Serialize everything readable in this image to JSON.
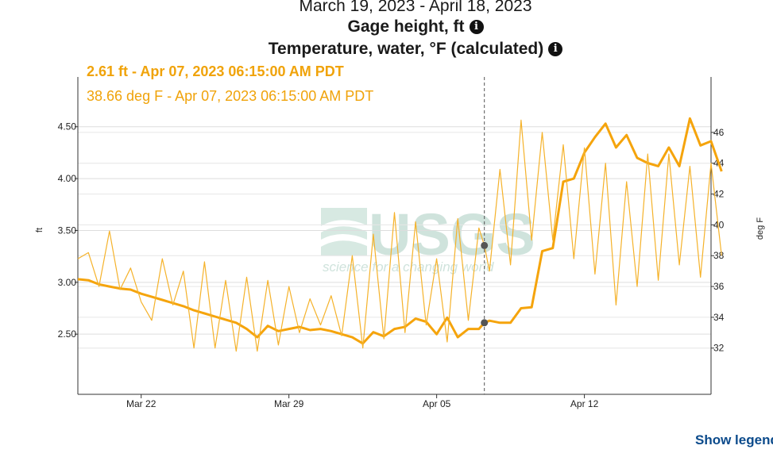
{
  "header": {
    "date_range": "March 19, 2023 - April 18, 2023",
    "gage_title": "Gage height, ft",
    "temp_title": "Temperature, water, °F (calculated)",
    "info_icon_glyph": "i"
  },
  "tooltip": {
    "gage": "2.61 ft - Apr 07, 2023 06:15:00 AM PDT",
    "temp": "38.66 deg F - Apr 07, 2023 06:15:00 AM PDT"
  },
  "legend_toggle": {
    "label": "Show legend"
  },
  "watermark": {
    "logo": "USGS",
    "tagline": "science for a changing world"
  },
  "colors": {
    "series": "#f5a40c",
    "temp_line": "#f5b22a",
    "grid": "#dddddd",
    "cursor": "#555555",
    "marker": "#555555",
    "link": "#0b4a8b"
  },
  "chart_data": {
    "type": "line",
    "x_range": [
      "2023-03-19",
      "2023-04-18"
    ],
    "x_ticks": [
      {
        "date": "2023-03-22",
        "label": "Mar 22"
      },
      {
        "date": "2023-03-29",
        "label": "Mar 29"
      },
      {
        "date": "2023-04-05",
        "label": "Apr 05"
      },
      {
        "date": "2023-04-12",
        "label": "Apr 12"
      }
    ],
    "cursor_date": "2023-04-07T06:15",
    "y_left": {
      "label": "ft",
      "ticks": [
        "2.50",
        "3.00",
        "3.50",
        "4.00",
        "4.50"
      ],
      "range": [
        1.92,
        4.98
      ]
    },
    "y_right": {
      "label": "deg F",
      "ticks": [
        "32",
        "34",
        "36",
        "38",
        "40",
        "42",
        "44",
        "46"
      ],
      "range": [
        29.0,
        49.6
      ]
    },
    "grid": true,
    "series": [
      {
        "name": "Gage height, ft",
        "axis": "left",
        "cursor_value": 2.61,
        "points": [
          [
            "2023-03-19T00:00",
            3.03
          ],
          [
            "2023-03-19T12:00",
            3.02
          ],
          [
            "2023-03-20T00:00",
            2.98
          ],
          [
            "2023-03-20T12:00",
            2.96
          ],
          [
            "2023-03-21T00:00",
            2.94
          ],
          [
            "2023-03-21T12:00",
            2.93
          ],
          [
            "2023-03-22T00:00",
            2.89
          ],
          [
            "2023-03-22T12:00",
            2.86
          ],
          [
            "2023-03-23T00:00",
            2.83
          ],
          [
            "2023-03-23T12:00",
            2.8
          ],
          [
            "2023-03-24T00:00",
            2.77
          ],
          [
            "2023-03-24T12:00",
            2.73
          ],
          [
            "2023-03-25T00:00",
            2.7
          ],
          [
            "2023-03-25T12:00",
            2.67
          ],
          [
            "2023-03-26T00:00",
            2.64
          ],
          [
            "2023-03-26T12:00",
            2.61
          ],
          [
            "2023-03-27T00:00",
            2.55
          ],
          [
            "2023-03-27T12:00",
            2.47
          ],
          [
            "2023-03-28T00:00",
            2.58
          ],
          [
            "2023-03-28T12:00",
            2.53
          ],
          [
            "2023-03-29T00:00",
            2.55
          ],
          [
            "2023-03-29T12:00",
            2.57
          ],
          [
            "2023-03-30T00:00",
            2.54
          ],
          [
            "2023-03-30T12:00",
            2.55
          ],
          [
            "2023-03-31T00:00",
            2.53
          ],
          [
            "2023-03-31T12:00",
            2.5
          ],
          [
            "2023-04-01T00:00",
            2.47
          ],
          [
            "2023-04-01T12:00",
            2.41
          ],
          [
            "2023-04-02T00:00",
            2.52
          ],
          [
            "2023-04-02T12:00",
            2.48
          ],
          [
            "2023-04-03T00:00",
            2.55
          ],
          [
            "2023-04-03T12:00",
            2.57
          ],
          [
            "2023-04-04T00:00",
            2.65
          ],
          [
            "2023-04-04T12:00",
            2.62
          ],
          [
            "2023-04-05T00:00",
            2.5
          ],
          [
            "2023-04-05T12:00",
            2.66
          ],
          [
            "2023-04-06T00:00",
            2.47
          ],
          [
            "2023-04-06T12:00",
            2.55
          ],
          [
            "2023-04-07T00:00",
            2.55
          ],
          [
            "2023-04-07T06:15",
            2.61
          ],
          [
            "2023-04-07T12:00",
            2.63
          ],
          [
            "2023-04-08T00:00",
            2.61
          ],
          [
            "2023-04-08T12:00",
            2.61
          ],
          [
            "2023-04-09T00:00",
            2.75
          ],
          [
            "2023-04-09T12:00",
            2.76
          ],
          [
            "2023-04-10T00:00",
            3.3
          ],
          [
            "2023-04-10T12:00",
            3.33
          ],
          [
            "2023-04-11T00:00",
            3.97
          ],
          [
            "2023-04-11T12:00",
            4.0
          ],
          [
            "2023-04-12T00:00",
            4.25
          ],
          [
            "2023-04-12T12:00",
            4.4
          ],
          [
            "2023-04-13T00:00",
            4.53
          ],
          [
            "2023-04-13T12:00",
            4.3
          ],
          [
            "2023-04-14T00:00",
            4.42
          ],
          [
            "2023-04-14T12:00",
            4.2
          ],
          [
            "2023-04-15T00:00",
            4.15
          ],
          [
            "2023-04-15T12:00",
            4.12
          ],
          [
            "2023-04-16T00:00",
            4.3
          ],
          [
            "2023-04-16T12:00",
            4.12
          ],
          [
            "2023-04-17T00:00",
            4.58
          ],
          [
            "2023-04-17T12:00",
            4.32
          ],
          [
            "2023-04-18T00:00",
            4.36
          ],
          [
            "2023-04-18T12:00",
            4.07
          ]
        ]
      },
      {
        "name": "Temperature, water, °F (calculated)",
        "axis": "right",
        "cursor_value": 38.66,
        "points": [
          [
            "2023-03-19T00:00",
            37.8
          ],
          [
            "2023-03-19T12:00",
            38.2
          ],
          [
            "2023-03-20T00:00",
            36.0
          ],
          [
            "2023-03-20T12:00",
            39.6
          ],
          [
            "2023-03-21T00:00",
            35.8
          ],
          [
            "2023-03-21T12:00",
            37.2
          ],
          [
            "2023-03-22T00:00",
            35.0
          ],
          [
            "2023-03-22T12:00",
            33.8
          ],
          [
            "2023-03-23T00:00",
            37.8
          ],
          [
            "2023-03-23T12:00",
            34.8
          ],
          [
            "2023-03-24T00:00",
            37.0
          ],
          [
            "2023-03-24T12:00",
            32.0
          ],
          [
            "2023-03-25T00:00",
            37.6
          ],
          [
            "2023-03-25T12:00",
            32.0
          ],
          [
            "2023-03-26T00:00",
            36.4
          ],
          [
            "2023-03-26T12:00",
            31.8
          ],
          [
            "2023-03-27T00:00",
            36.6
          ],
          [
            "2023-03-27T12:00",
            31.8
          ],
          [
            "2023-03-28T00:00",
            36.4
          ],
          [
            "2023-03-28T12:00",
            32.2
          ],
          [
            "2023-03-29T00:00",
            36.0
          ],
          [
            "2023-03-29T12:00",
            33.0
          ],
          [
            "2023-03-30T00:00",
            35.2
          ],
          [
            "2023-03-30T12:00",
            33.5
          ],
          [
            "2023-03-31T00:00",
            35.4
          ],
          [
            "2023-03-31T12:00",
            32.8
          ],
          [
            "2023-04-01T00:00",
            38.0
          ],
          [
            "2023-04-01T12:00",
            32.0
          ],
          [
            "2023-04-02T00:00",
            39.4
          ],
          [
            "2023-04-02T12:00",
            32.6
          ],
          [
            "2023-04-03T00:00",
            40.8
          ],
          [
            "2023-04-03T12:00",
            33.0
          ],
          [
            "2023-04-04T00:00",
            40.2
          ],
          [
            "2023-04-04T12:00",
            33.5
          ],
          [
            "2023-04-05T00:00",
            37.8
          ],
          [
            "2023-04-05T12:00",
            32.4
          ],
          [
            "2023-04-06T00:00",
            40.4
          ],
          [
            "2023-04-06T12:00",
            33.8
          ],
          [
            "2023-04-07T00:00",
            39.8
          ],
          [
            "2023-04-07T06:15",
            38.66
          ],
          [
            "2023-04-07T12:00",
            37.0
          ],
          [
            "2023-04-08T00:00",
            43.6
          ],
          [
            "2023-04-08T12:00",
            37.4
          ],
          [
            "2023-04-09T00:00",
            46.8
          ],
          [
            "2023-04-09T12:00",
            39.0
          ],
          [
            "2023-04-10T00:00",
            46.0
          ],
          [
            "2023-04-10T12:00",
            39.0
          ],
          [
            "2023-04-11T00:00",
            45.2
          ],
          [
            "2023-04-11T12:00",
            37.8
          ],
          [
            "2023-04-12T00:00",
            45.0
          ],
          [
            "2023-04-12T12:00",
            36.8
          ],
          [
            "2023-04-13T00:00",
            44.0
          ],
          [
            "2023-04-13T12:00",
            34.8
          ],
          [
            "2023-04-14T00:00",
            42.8
          ],
          [
            "2023-04-14T12:00",
            36.0
          ],
          [
            "2023-04-15T00:00",
            44.6
          ],
          [
            "2023-04-15T12:00",
            36.4
          ],
          [
            "2023-04-16T00:00",
            44.6
          ],
          [
            "2023-04-16T12:00",
            37.4
          ],
          [
            "2023-04-17T00:00",
            43.8
          ],
          [
            "2023-04-17T12:00",
            36.6
          ],
          [
            "2023-04-18T00:00",
            44.0
          ],
          [
            "2023-04-18T12:00",
            38.0
          ]
        ]
      }
    ]
  }
}
